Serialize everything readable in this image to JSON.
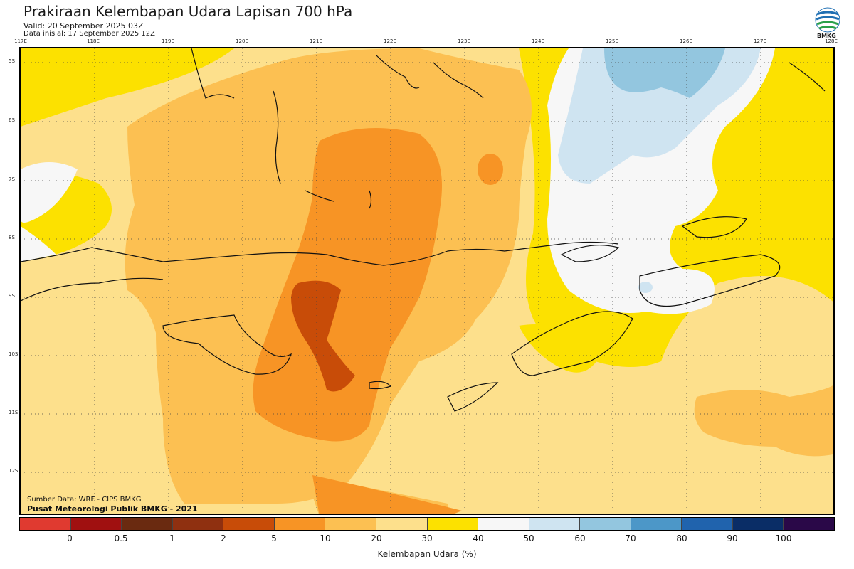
{
  "header": {
    "title": "Prakiraan Kelembapan Udara Lapisan 700 hPa",
    "valid": "Valid: 20 September 2025 03Z",
    "init": "Data inisial: 17 September 2025 12Z"
  },
  "logo": {
    "text": "BMKG",
    "icon": "bmkg-logo"
  },
  "axes": {
    "lon_labels": [
      "117E",
      "118E",
      "119E",
      "120E",
      "121E",
      "122E",
      "123E",
      "124E",
      "125E",
      "126E",
      "127E",
      "128E"
    ],
    "lat_labels": [
      "5S",
      "6S",
      "7S",
      "8S",
      "9S",
      "10S",
      "11S",
      "12S"
    ]
  },
  "source": {
    "line1": "Sumber Data: WRF - CIPS BMKG",
    "line2": "Pusat Meteorologi Publik BMKG - 2021"
  },
  "colorbar": {
    "label": "Kelembapan Udara (%)",
    "ticks": [
      "0",
      "0.5",
      "1",
      "2",
      "5",
      "10",
      "20",
      "30",
      "40",
      "50",
      "60",
      "70",
      "80",
      "90",
      "100"
    ],
    "colors": [
      "#e03a30",
      "#a01010",
      "#6a2a10",
      "#8f3010",
      "#c84c08",
      "#f79425",
      "#fcc052",
      "#fde08c",
      "#fce100",
      "#f7f7f7",
      "#cfe4f1",
      "#93c6df",
      "#4c97c8",
      "#2063ad",
      "#0a2d66",
      "#2a0848"
    ]
  }
}
